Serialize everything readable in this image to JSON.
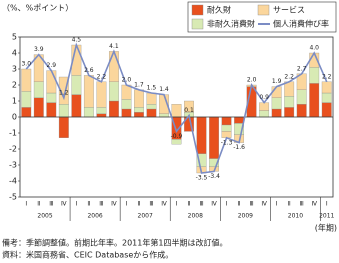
{
  "chart_data": {
    "type": "bar",
    "stacked": true,
    "y_label": "（%、%ポイント）",
    "x_label": "(年期)",
    "categories": [
      "Ⅰ",
      "Ⅱ",
      "Ⅲ",
      "Ⅳ",
      "Ⅰ",
      "Ⅱ",
      "Ⅲ",
      "Ⅳ",
      "Ⅰ",
      "Ⅱ",
      "Ⅲ",
      "Ⅳ",
      "Ⅰ",
      "Ⅱ",
      "Ⅲ",
      "Ⅳ",
      "Ⅰ",
      "Ⅱ",
      "Ⅲ",
      "Ⅳ",
      "Ⅰ",
      "Ⅱ",
      "Ⅲ",
      "Ⅳ",
      "Ⅰ"
    ],
    "years": [
      "2005",
      "2006",
      "2007",
      "2008",
      "2009",
      "2010",
      "2011"
    ],
    "ylim": [
      -5,
      5
    ],
    "yticks": [
      -5,
      -4,
      -3,
      -2,
      -1,
      0,
      1,
      2,
      3,
      4,
      5
    ],
    "series": [
      {
        "name": "耐久財",
        "color": "#e8501e",
        "values": [
          0.6,
          1.2,
          0.9,
          -1.3,
          1.4,
          0.0,
          0.2,
          1.0,
          0.5,
          0.3,
          0.5,
          0.0,
          -1.4,
          -0.9,
          -2.3,
          -2.6,
          -0.5,
          -0.4,
          1.9,
          0.0,
          0.5,
          0.6,
          0.8,
          2.1,
          0.9
        ]
      },
      {
        "name": "非耐久消費財",
        "color": "#d8eab4",
        "values": [
          1.0,
          1.0,
          0.6,
          0.8,
          1.2,
          0.6,
          0.4,
          1.2,
          0.6,
          0.3,
          0.3,
          0.2,
          -0.3,
          0.3,
          -0.8,
          -0.5,
          -0.4,
          -0.7,
          0.0,
          0.4,
          0.7,
          0.7,
          0.9,
          1.0,
          0.6
        ]
      },
      {
        "name": "サービス",
        "color": "#fbd69c",
        "values": [
          1.4,
          1.7,
          1.4,
          1.7,
          1.9,
          2.0,
          1.6,
          1.9,
          0.9,
          1.1,
          0.7,
          1.2,
          0.8,
          0.7,
          -0.4,
          -0.3,
          -0.4,
          -0.5,
          0.1,
          0.5,
          0.7,
          0.9,
          1.0,
          0.9,
          0.7
        ]
      },
      {
        "name": "個人消費伸び率",
        "type": "line",
        "color": "#7b8cc4",
        "values": [
          3.0,
          3.9,
          2.9,
          1.2,
          4.5,
          2.6,
          2.2,
          4.1,
          2.0,
          1.7,
          1.5,
          1.4,
          -0.9,
          0.1,
          -3.5,
          -3.4,
          -1.3,
          -1.6,
          2.0,
          0.9,
          1.9,
          2.2,
          2.7,
          4.0,
          2.2
        ],
        "value_labels": [
          "3.0",
          "3.9",
          "2.9",
          "1.2",
          "4.5",
          "2.6",
          "2.2",
          "4.1",
          "2.0",
          "1.7",
          "1.5",
          "1.4",
          "-0.9",
          "0.1",
          "-3.5",
          "-3.4",
          "-1.3",
          "-1.6",
          "2.0",
          "0.9",
          "1.9",
          "2.2",
          "2.7",
          "4.0",
          "2.2"
        ]
      }
    ],
    "legend_order": [
      0,
      2,
      1,
      3
    ],
    "notes": [
      "備考：季節調整値。前期比年率。2011年第1四半期は改訂値。",
      "資料：米国商務省、CEIC Databaseから作成。"
    ]
  }
}
